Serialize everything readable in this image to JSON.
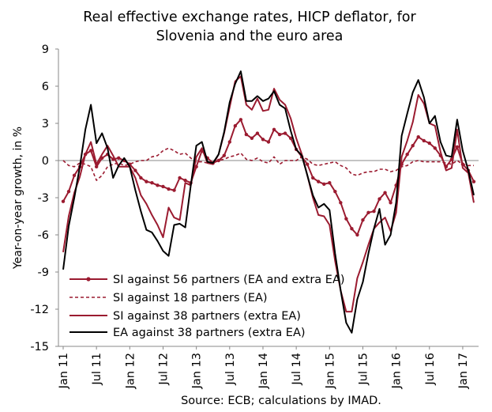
{
  "chart_data": {
    "type": "line",
    "title": "Real effective exchange rates, HICP deflator, for\nSlovenia and the euro area",
    "ylabel": "Year-on-year growth, in %",
    "xlabel": "",
    "source": "Source: ECB; calculations by IMAD.",
    "ylim": [
      -15,
      9
    ],
    "yticks": [
      9,
      6,
      3,
      0,
      -3,
      -6,
      -9,
      -12,
      -15
    ],
    "xticks": [
      {
        "label": "Jan 11",
        "i": 0
      },
      {
        "label": "Jul 11",
        "i": 6
      },
      {
        "label": "Jan 12",
        "i": 12
      },
      {
        "label": "Jul 12",
        "i": 18
      },
      {
        "label": "Jan 13",
        "i": 24
      },
      {
        "label": "Jul 13",
        "i": 30
      },
      {
        "label": "Jan 14",
        "i": 36
      },
      {
        "label": "Jul 14",
        "i": 42
      },
      {
        "label": "Jan 15",
        "i": 48
      },
      {
        "label": "Jul 15",
        "i": 54
      },
      {
        "label": "Jan 16",
        "i": 60
      },
      {
        "label": "Jul 16",
        "i": 66
      },
      {
        "label": "Jan 17",
        "i": 72
      }
    ],
    "x_start": "Jan 11",
    "x_end": "Mar 17",
    "legend_position": "lower-left",
    "series": [
      {
        "name": "SI against 56 partners (EA and extra EA)",
        "color": "#9b1b30",
        "style": "solid-markers",
        "values": [
          -3.3,
          -2.5,
          -1.2,
          -0.5,
          0.5,
          0.8,
          -0.5,
          0.2,
          0.5,
          0.1,
          0.2,
          0.0,
          -0.3,
          -0.8,
          -1.4,
          -1.7,
          -1.8,
          -2.0,
          -2.1,
          -2.3,
          -2.4,
          -1.4,
          -1.6,
          -1.8,
          -0.5,
          0.8,
          0.2,
          -0.2,
          0.0,
          0.4,
          1.5,
          2.8,
          3.3,
          2.1,
          1.8,
          2.2,
          1.7,
          1.5,
          2.5,
          2.1,
          2.2,
          1.8,
          0.9,
          0.3,
          -0.3,
          -1.4,
          -1.7,
          -1.9,
          -1.8,
          -2.5,
          -3.4,
          -4.7,
          -5.5,
          -6.0,
          -4.8,
          -4.2,
          -4.1,
          -3.1,
          -2.6,
          -3.4,
          -2.0,
          -0.3,
          0.5,
          1.2,
          1.9,
          1.6,
          1.4,
          1.0,
          0.4,
          -0.5,
          0.1,
          1.1,
          -0.3,
          -0.8,
          -1.7
        ]
      },
      {
        "name": "SI against 18 partners (EA)",
        "color": "#9b1b30",
        "style": "dashed",
        "values": [
          0.0,
          -0.4,
          -0.5,
          -0.2,
          -0.3,
          -0.5,
          -1.6,
          -1.2,
          -0.5,
          -0.3,
          -0.2,
          -0.4,
          -0.3,
          -0.1,
          0.0,
          0.0,
          0.3,
          0.4,
          0.8,
          1.0,
          0.8,
          0.5,
          0.6,
          0.2,
          -0.1,
          -0.1,
          -0.2,
          -0.1,
          0.0,
          0.1,
          0.3,
          0.4,
          0.6,
          0.1,
          0.0,
          0.2,
          -0.1,
          -0.2,
          0.3,
          -0.3,
          0.0,
          0.0,
          0.0,
          0.3,
          0.1,
          -0.3,
          -0.4,
          -0.3,
          -0.2,
          -0.1,
          -0.4,
          -0.6,
          -1.1,
          -1.2,
          -1.0,
          -0.9,
          -0.9,
          -0.7,
          -0.7,
          -0.9,
          -0.8,
          -0.5,
          -0.4,
          -0.1,
          0.0,
          -0.1,
          -0.1,
          -0.1,
          -0.1,
          -0.2,
          -0.3,
          0.0,
          -0.3,
          -0.4,
          -0.4
        ]
      },
      {
        "name": "SI against 38 partners (extra EA)",
        "color": "#9b1b30",
        "style": "solid",
        "values": [
          -7.4,
          -4.5,
          -2.6,
          -1.3,
          0.5,
          1.5,
          -0.3,
          0.5,
          1.2,
          0.4,
          -0.5,
          -0.5,
          -0.5,
          -1.4,
          -2.8,
          -3.5,
          -4.4,
          -5.2,
          -6.2,
          -3.8,
          -4.6,
          -4.8,
          -1.8,
          -2.0,
          0.3,
          1.0,
          -0.2,
          -0.3,
          0.5,
          2.2,
          4.3,
          6.4,
          6.8,
          4.5,
          4.1,
          5.0,
          4.0,
          4.1,
          5.8,
          4.9,
          4.5,
          3.4,
          1.8,
          0.5,
          -1.2,
          -3.0,
          -4.4,
          -4.5,
          -5.2,
          -8.1,
          -10.5,
          -12.2,
          -12.2,
          -9.5,
          -8.2,
          -6.8,
          -5.5,
          -5.0,
          -4.6,
          -5.7,
          -4.2,
          0.3,
          1.6,
          3.1,
          5.3,
          4.6,
          3.0,
          2.8,
          0.7,
          -0.8,
          -0.6,
          2.5,
          -0.6,
          -1.0,
          -3.4
        ]
      },
      {
        "name": "EA against 38 partners (extra EA)",
        "color": "#000000",
        "style": "solid",
        "values": [
          -8.8,
          -5.3,
          -3.0,
          -0.5,
          2.5,
          4.5,
          1.4,
          2.2,
          1.0,
          -1.4,
          -0.4,
          0.2,
          -0.5,
          -2.4,
          -4.1,
          -5.6,
          -5.8,
          -6.5,
          -7.3,
          -7.7,
          -5.2,
          -5.1,
          -5.4,
          -2.0,
          1.2,
          1.5,
          -0.1,
          -0.2,
          0.5,
          2.3,
          4.7,
          6.2,
          7.2,
          4.8,
          4.8,
          5.2,
          4.8,
          5.0,
          5.6,
          4.5,
          4.2,
          2.4,
          0.9,
          0.4,
          -1.2,
          -2.8,
          -3.8,
          -3.5,
          -4.0,
          -7.5,
          -10.5,
          -13.1,
          -13.9,
          -11.2,
          -9.8,
          -7.5,
          -5.5,
          -3.9,
          -6.8,
          -6.0,
          -3.4,
          2.0,
          3.8,
          5.5,
          6.5,
          5.1,
          3.0,
          3.6,
          1.5,
          0.4,
          0.3,
          3.3,
          0.8,
          -0.8,
          -2.8
        ]
      }
    ]
  }
}
